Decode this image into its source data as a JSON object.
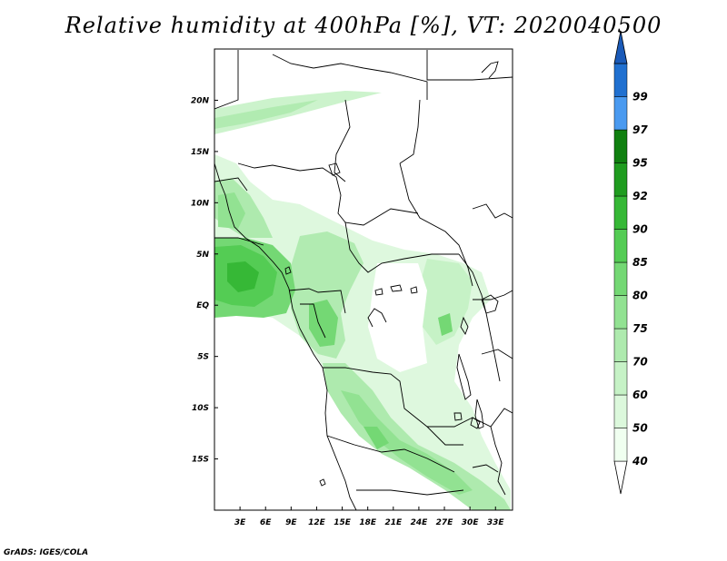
{
  "title": "Relative humidity at 400hPa [%], VT: 2020040500",
  "credit": "GrADS: IGES/COLA",
  "map": {
    "lon_range": [
      0,
      35
    ],
    "lat_range": [
      -20,
      25
    ],
    "lon_ticks": [
      {
        "lon": 3,
        "label": "3E"
      },
      {
        "lon": 6,
        "label": "6E"
      },
      {
        "lon": 9,
        "label": "9E"
      },
      {
        "lon": 12,
        "label": "12E"
      },
      {
        "lon": 15,
        "label": "15E"
      },
      {
        "lon": 18,
        "label": "18E"
      },
      {
        "lon": 21,
        "label": "21E"
      },
      {
        "lon": 24,
        "label": "24E"
      },
      {
        "lon": 27,
        "label": "27E"
      },
      {
        "lon": 30,
        "label": "30E"
      },
      {
        "lon": 33,
        "label": "33E"
      }
    ],
    "lat_ticks": [
      {
        "lat": 20,
        "label": "20N"
      },
      {
        "lat": 15,
        "label": "15N"
      },
      {
        "lat": 10,
        "label": "10N"
      },
      {
        "lat": 5,
        "label": "5N"
      },
      {
        "lat": 0,
        "label": "EQ"
      },
      {
        "lat": -5,
        "label": "5S"
      },
      {
        "lat": -10,
        "label": "10S"
      },
      {
        "lat": -15,
        "label": "15S"
      }
    ]
  },
  "colorbar": {
    "levels": [
      {
        "label": "40",
        "color": "#f0fff0"
      },
      {
        "label": "50",
        "color": "#dcf8dc"
      },
      {
        "label": "60",
        "color": "#c6f2c6"
      },
      {
        "label": "70",
        "color": "#aeeaae"
      },
      {
        "label": "75",
        "color": "#92e292"
      },
      {
        "label": "80",
        "color": "#74d874"
      },
      {
        "label": "85",
        "color": "#54cc54"
      },
      {
        "label": "90",
        "color": "#36b836"
      },
      {
        "label": "92",
        "color": "#1f9c1f"
      },
      {
        "label": "95",
        "color": "#108010"
      },
      {
        "label": "97",
        "color": "#4a9af0"
      },
      {
        "label": "99",
        "color": "#2070d0"
      }
    ],
    "top_color": "#1a5ab8"
  },
  "colors": {
    "ocean": "#ffffff",
    "coast": "#000000",
    "border": "#000000"
  }
}
